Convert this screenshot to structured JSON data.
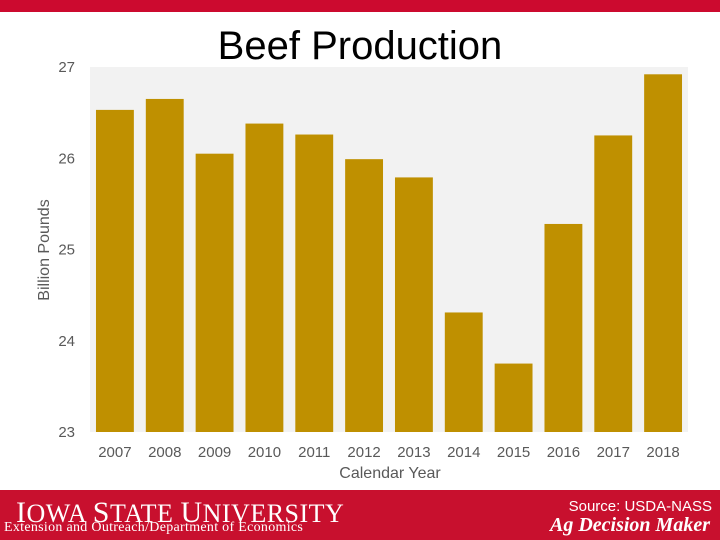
{
  "chart_data": {
    "type": "bar",
    "title": "Beef Production",
    "xlabel": "Calendar Year",
    "ylabel": "Billion Pounds",
    "categories": [
      "2007",
      "2008",
      "2009",
      "2010",
      "2011",
      "2012",
      "2013",
      "2014",
      "2015",
      "2016",
      "2017",
      "2018"
    ],
    "values": [
      26.53,
      26.65,
      26.05,
      26.38,
      26.26,
      25.99,
      25.79,
      24.31,
      23.75,
      25.28,
      26.25,
      26.92
    ],
    "ylim": [
      23,
      27
    ],
    "yticks": [
      "23",
      "24",
      "25",
      "26",
      "27"
    ],
    "grid": false,
    "bar_color": "#bf9000",
    "plot_background": "#f2f2f2"
  },
  "footer": {
    "university_first": "I",
    "university_owa": "OWA ",
    "university_s": "S",
    "university_tate": "TATE ",
    "university_u": "U",
    "university_niversity": "NIVERSITY",
    "department": "Extension and Outreach/Department of Economics",
    "source": "Source: USDA-NASS",
    "brand": "Ag Decision Maker"
  },
  "colors": {
    "brand_red": "#c8102e"
  }
}
